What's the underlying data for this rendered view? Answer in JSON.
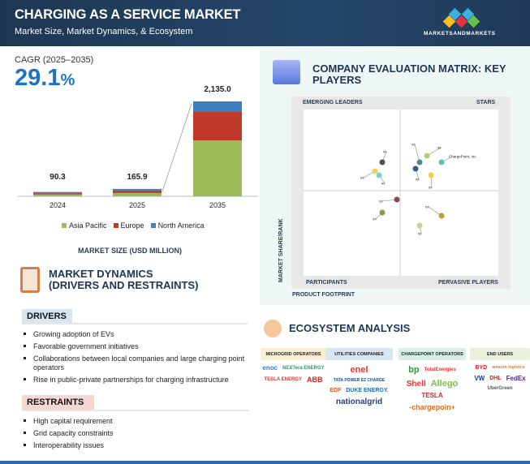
{
  "header": {
    "title": "CHARGING AS A SERVICE MARKET",
    "subtitle": "Market Size, Market Dynamics, & Ecosystem",
    "logo": "MARKETSANDMARKETS",
    "brand_colors": [
      "#f5c02a",
      "#e5323e",
      "#3cb0d8",
      "#6bbf4e"
    ]
  },
  "cagr": {
    "label": "CAGR (2025–2035)",
    "value": "29.1",
    "unit": "%"
  },
  "chart_data": {
    "type": "bar",
    "stacked": true,
    "categories": [
      "2024",
      "2025",
      "2035"
    ],
    "totals": [
      "90.3",
      "165.9",
      "2,135.0"
    ],
    "series": [
      {
        "name": "Asia Pacific",
        "color": "#9bbb59",
        "values": [
          40,
          75,
          1258
        ]
      },
      {
        "name": "Europe",
        "color": "#c0392b",
        "values": [
          30,
          55,
          640
        ]
      },
      {
        "name": "North America",
        "color": "#3d7ebf",
        "values": [
          20.3,
          35.9,
          237
        ]
      }
    ],
    "xlabel": "MARKET SIZE (USD MILLION)",
    "grid": false,
    "legend": "bottom"
  },
  "matrix": {
    "title": "COMPANY EVALUATION MATRIX: KEY PLAYERS",
    "quadrants": {
      "tl": "EMERGING LEADERS",
      "tr": "STARS",
      "bl": "PARTICIPANTS",
      "br": "PERVASIVE PLAYERS"
    },
    "y_axis": "MARKET SHARE/RANK",
    "x_axis": "PRODUCT FOOTPRINT",
    "points": [
      {
        "label": "xx",
        "color": "#5a4a5e"
      },
      {
        "label": "xx",
        "color": "#f5d04a"
      },
      {
        "label": "xx",
        "color": "#7ccfc4"
      },
      {
        "label": "xx",
        "color": "#4a8a80"
      },
      {
        "label": "xx",
        "color": "#b4cc70"
      },
      {
        "label": "ChargePoint, Inc.",
        "color": "#5fc0b0"
      },
      {
        "label": "xx",
        "color": "#3e5a80"
      },
      {
        "label": "xx",
        "color": "#f5d04a"
      },
      {
        "label": "xx",
        "color": "#8a4a4a"
      },
      {
        "label": "xx",
        "color": "#8a9a50"
      },
      {
        "label": "xx",
        "color": "#c09a30"
      },
      {
        "label": "xx",
        "color": "#c0d890"
      }
    ]
  },
  "dynamics": {
    "title_line1": "MARKET DYNAMICS",
    "title_line2": "(DRIVERS AND RESTRAINTS)",
    "drivers_label": "DRIVERS",
    "drivers": [
      "Growing adoption of EVs",
      "Favorable government initiatives",
      "Collaborations between local companies and large charging point operators",
      "Rise in public-private partnerships for charging infrastructure"
    ],
    "restraints_label": "RESTRAINTS",
    "restraints": [
      "High capital requirement",
      "Grid capacity constraints",
      "Interoperability issues"
    ]
  },
  "ecosystem": {
    "title": "ECOSYSTEM ANALYSIS",
    "categories": [
      {
        "label": "MICROGRID OPERATORS",
        "color": "#fbefd2",
        "logos": [
          "enoc",
          "NEXTera ENERGY",
          "TESLA ENERGY",
          "ABB"
        ]
      },
      {
        "label": "UTILITIES COMPANIES",
        "color": "#d8e6f2",
        "logos": [
          "enel",
          "TATA POWER EZ CHARGE",
          "EDF",
          "DUKE ENERGY.",
          "nationalgrid"
        ]
      },
      {
        "label": "CHARGEPOINT OPERATORS",
        "color": "#d6efe9",
        "logos": [
          "bp",
          "TotalEnergies",
          "Shell",
          "Allego",
          "TESLA",
          "-chargepoin+"
        ]
      },
      {
        "label": "END USERS",
        "color": "#e9f0dc",
        "logos": [
          "BYD",
          "amazon logistics",
          "VW",
          "DHL",
          "FedEx",
          "UberGreen"
        ]
      }
    ]
  }
}
